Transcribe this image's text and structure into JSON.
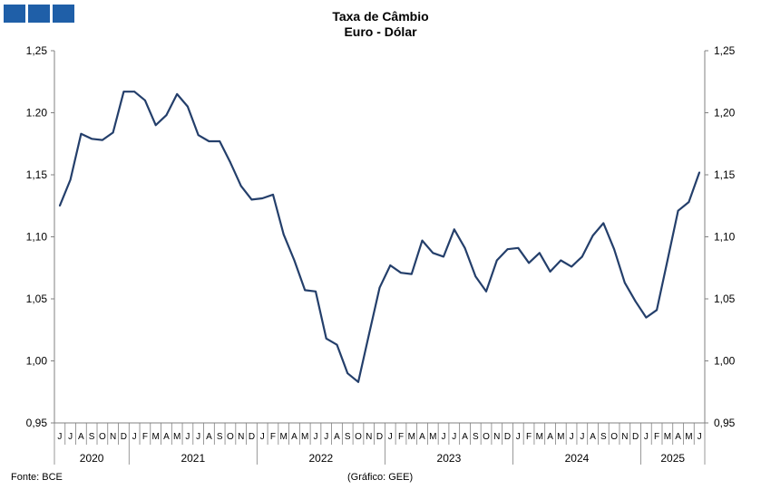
{
  "chart_data": {
    "type": "line",
    "title": "Taxa de Câmbio",
    "subtitle": "Euro - Dólar",
    "y_ticks_left": [
      "1,25",
      "1.20",
      "1,15",
      "1,10",
      "1,05",
      "1,00",
      "0,95"
    ],
    "y_ticks_right": [
      "1,25",
      "1,20",
      "1,15",
      "1,10",
      "1,05",
      "1,00",
      "0,95"
    ],
    "ylim": [
      0.95,
      1.25
    ],
    "grid": false,
    "x_month_labels": [
      "J",
      "J",
      "A",
      "S",
      "O",
      "N",
      "D",
      "J",
      "F",
      "M",
      "A",
      "M",
      "J",
      "J",
      "A",
      "S",
      "O",
      "N",
      "D",
      "J",
      "F",
      "M",
      "A",
      "M",
      "J",
      "J",
      "A",
      "S",
      "O",
      "N",
      "D",
      "J",
      "F",
      "M",
      "A",
      "M",
      "J",
      "J",
      "A",
      "S",
      "O",
      "N",
      "D",
      "J",
      "F",
      "M",
      "A",
      "M",
      "J",
      "J",
      "A",
      "S",
      "O",
      "N",
      "D",
      "J",
      "F",
      "M",
      "A",
      "M",
      "J"
    ],
    "x_year_labels": [
      {
        "label": "2020",
        "months": 7
      },
      {
        "label": "2021",
        "months": 12
      },
      {
        "label": "2022",
        "months": 12
      },
      {
        "label": "2023",
        "months": 12
      },
      {
        "label": "2024",
        "months": 12
      },
      {
        "label": "2025",
        "months": 6
      }
    ],
    "series": [
      {
        "color": "#243f6b",
        "values": [
          1.125,
          1.146,
          1.183,
          1.179,
          1.178,
          1.184,
          1.217,
          1.217,
          1.21,
          1.19,
          1.198,
          1.215,
          1.205,
          1.182,
          1.177,
          1.177,
          1.16,
          1.141,
          1.13,
          1.131,
          1.134,
          1.102,
          1.081,
          1.057,
          1.056,
          1.018,
          1.013,
          0.99,
          0.983,
          1.021,
          1.059,
          1.077,
          1.071,
          1.07,
          1.097,
          1.087,
          1.084,
          1.106,
          1.091,
          1.068,
          1.056,
          1.081,
          1.09,
          1.091,
          1.079,
          1.087,
          1.072,
          1.081,
          1.076,
          1.084,
          1.101,
          1.111,
          1.09,
          1.063,
          1.048,
          1.035,
          1.041,
          1.081,
          1.121,
          1.128,
          1.152
        ]
      }
    ]
  },
  "footer": {
    "source": "Fonte: BCE",
    "credit": "(Gráfico: GEE)"
  }
}
